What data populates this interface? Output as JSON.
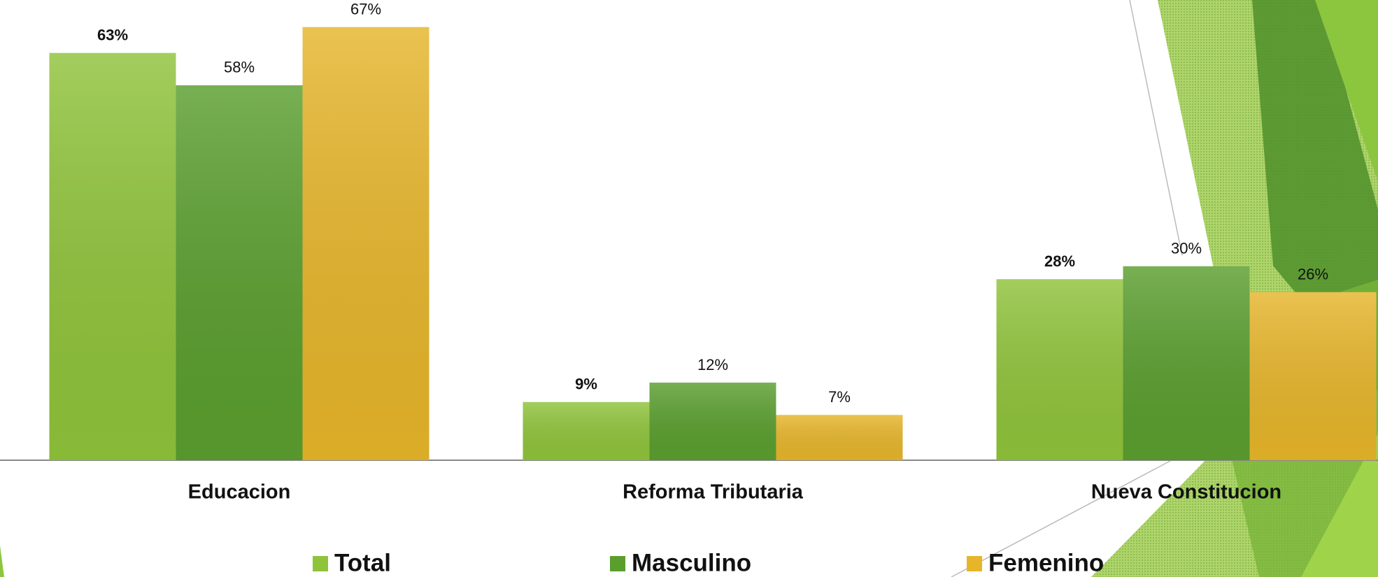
{
  "chart_data": {
    "type": "bar",
    "categories": [
      "Educacion",
      "Reforma Tributaria",
      "Nueva Constitucion"
    ],
    "series": [
      {
        "name": "Total",
        "color": "#8fc33a",
        "values": [
          63,
          9,
          28
        ],
        "value_labels": [
          "63%",
          "9%",
          "28%"
        ]
      },
      {
        "name": "Masculino",
        "color": "#5a9e2e",
        "values": [
          58,
          12,
          30
        ],
        "value_labels": [
          "58%",
          "12%",
          "30%"
        ]
      },
      {
        "name": "Femenino",
        "color": "#e6b52a",
        "values": [
          67,
          7,
          26
        ],
        "value_labels": [
          "67%",
          "7%",
          "26%"
        ]
      }
    ],
    "ylim": [
      0,
      70
    ]
  }
}
